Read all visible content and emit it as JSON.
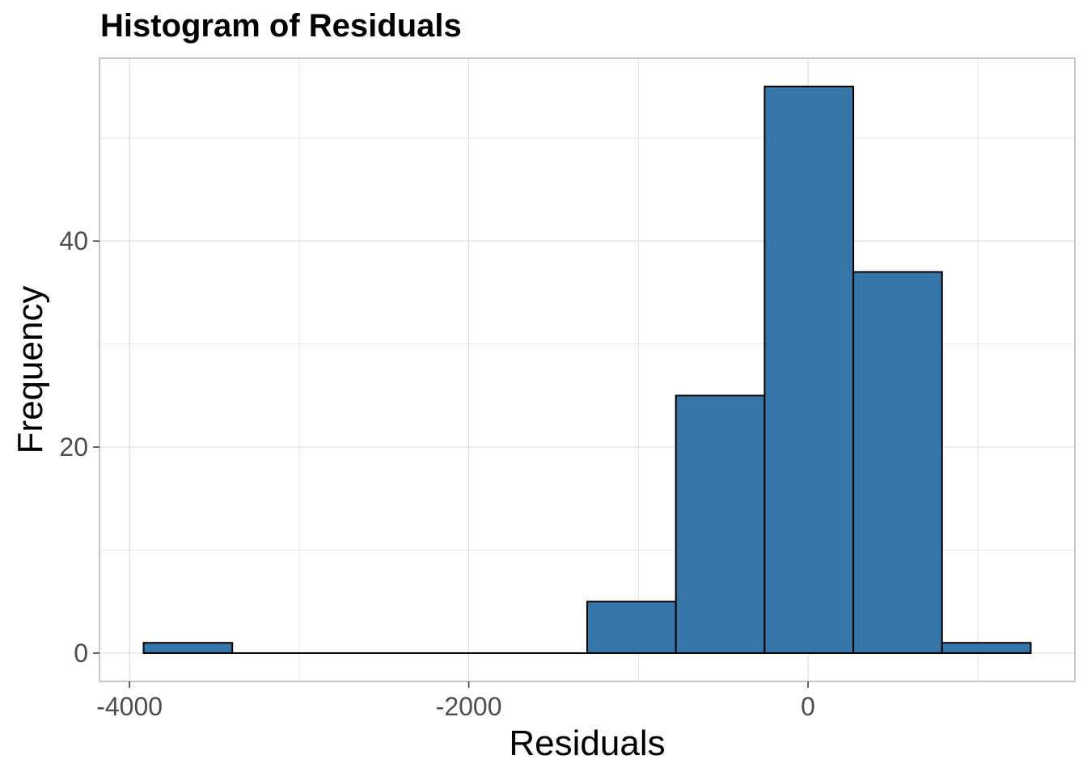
{
  "chart_data": {
    "type": "bar",
    "title": "Histogram of Residuals",
    "xlabel": "Residuals",
    "ylabel": "Frequency",
    "bin_width": 523,
    "bins": [
      {
        "start": -3917,
        "end": -3394,
        "count": 1
      },
      {
        "start": -3394,
        "end": -2871,
        "count": 0
      },
      {
        "start": -2871,
        "end": -2348,
        "count": 0
      },
      {
        "start": -2348,
        "end": -1825,
        "count": 0
      },
      {
        "start": -1825,
        "end": -1302,
        "count": 0
      },
      {
        "start": -1302,
        "end": -779,
        "count": 5
      },
      {
        "start": -779,
        "end": -256,
        "count": 25
      },
      {
        "start": -256,
        "end": 267,
        "count": 55
      },
      {
        "start": 267,
        "end": 790,
        "count": 37
      },
      {
        "start": 790,
        "end": 1313,
        "count": 1
      }
    ],
    "x_ticks": [
      {
        "value": -4000,
        "label": "-4000"
      },
      {
        "value": -2000,
        "label": "-2000"
      },
      {
        "value": 0,
        "label": "0"
      }
    ],
    "x_minor": [
      -3000,
      -1000,
      1000
    ],
    "y_ticks": [
      {
        "value": 0,
        "label": "0"
      },
      {
        "value": 20,
        "label": "20"
      },
      {
        "value": 40,
        "label": "40"
      }
    ],
    "y_minor": [
      10,
      30,
      50
    ],
    "xlim": [
      -4177,
      1573
    ],
    "ylim": [
      -2.75,
      57.75
    ],
    "grid": true,
    "legend": "none",
    "colors": {
      "fill": "#3575a8",
      "outline": "#000000",
      "grid": "#dedede",
      "panel_border": "#b3b3b3",
      "tick_text": "#4d4d4d"
    }
  }
}
